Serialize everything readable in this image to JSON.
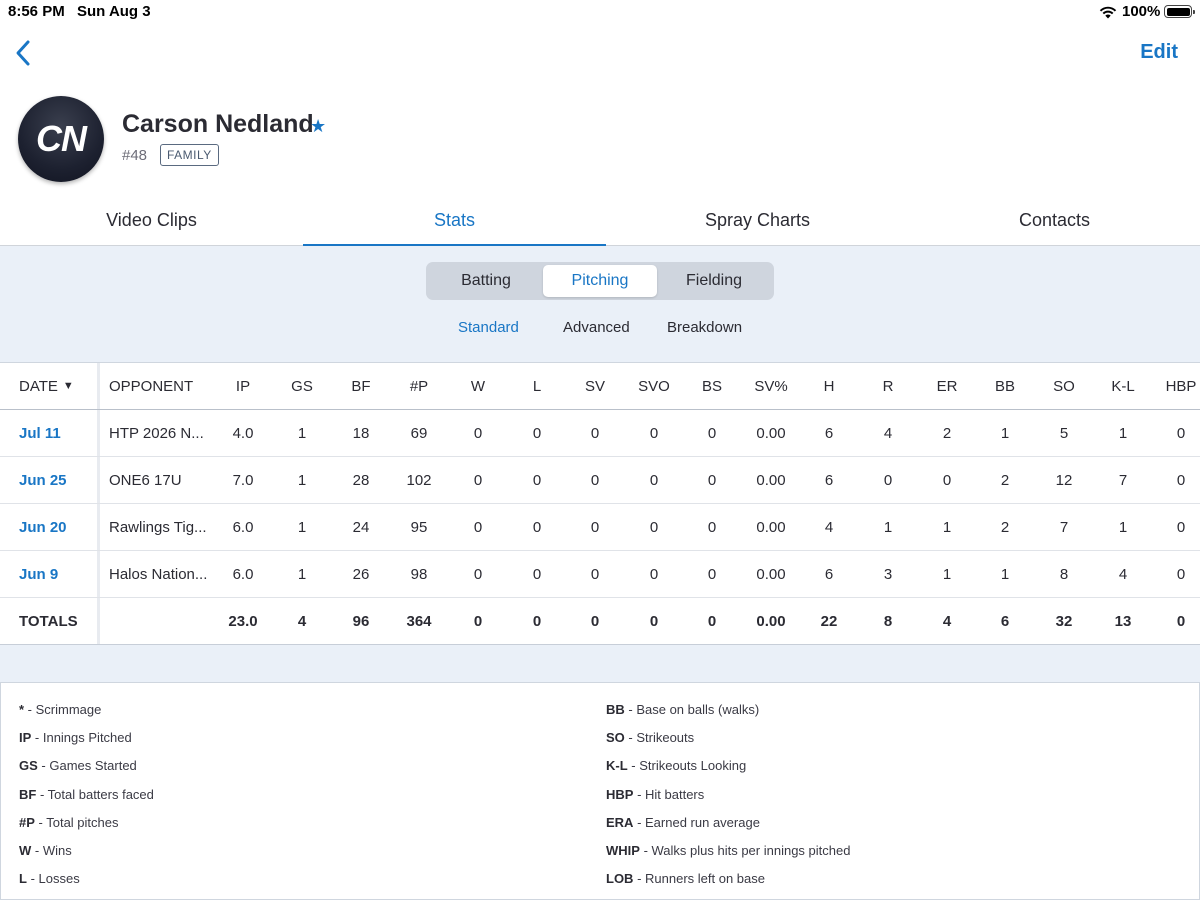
{
  "status_bar": {
    "time": "8:56 PM",
    "date": "Sun Aug 3",
    "battery": "100%"
  },
  "nav": {
    "edit_label": "Edit"
  },
  "player": {
    "initials": "CN",
    "name": "Carson Nedland",
    "number": "#48",
    "badge": "FAMILY"
  },
  "tabs": [
    "Video Clips",
    "Stats",
    "Spray Charts",
    "Contacts"
  ],
  "segments": [
    "Batting",
    "Pitching",
    "Fielding"
  ],
  "subtabs": [
    "Standard",
    "Advanced",
    "Breakdown"
  ],
  "table": {
    "date_header": "DATE",
    "opponent_header": "OPPONENT",
    "stat_headers": [
      "IP",
      "GS",
      "BF",
      "#P",
      "W",
      "L",
      "SV",
      "SVO",
      "BS",
      "SV%",
      "H",
      "R",
      "ER",
      "BB",
      "SO",
      "K-L",
      "HBP"
    ],
    "rows": [
      {
        "date": "Jul 11",
        "opponent": "HTP 2026 N...",
        "stats": [
          "4.0",
          "1",
          "18",
          "69",
          "0",
          "0",
          "0",
          "0",
          "0",
          "0.00",
          "6",
          "4",
          "2",
          "1",
          "5",
          "1",
          "0"
        ]
      },
      {
        "date": "Jun 25",
        "opponent": "ONE6 17U",
        "stats": [
          "7.0",
          "1",
          "28",
          "102",
          "0",
          "0",
          "0",
          "0",
          "0",
          "0.00",
          "6",
          "0",
          "0",
          "2",
          "12",
          "7",
          "0"
        ]
      },
      {
        "date": "Jun 20",
        "opponent": "Rawlings Tig...",
        "stats": [
          "6.0",
          "1",
          "24",
          "95",
          "0",
          "0",
          "0",
          "0",
          "0",
          "0.00",
          "4",
          "1",
          "1",
          "2",
          "7",
          "1",
          "0"
        ]
      },
      {
        "date": "Jun 9",
        "opponent": "Halos Nation...",
        "stats": [
          "6.0",
          "1",
          "26",
          "98",
          "0",
          "0",
          "0",
          "0",
          "0",
          "0.00",
          "6",
          "3",
          "1",
          "1",
          "8",
          "4",
          "0"
        ]
      }
    ],
    "totals": {
      "label": "TOTALS",
      "stats": [
        "23.0",
        "4",
        "96",
        "364",
        "0",
        "0",
        "0",
        "0",
        "0",
        "0.00",
        "22",
        "8",
        "4",
        "6",
        "32",
        "13",
        "0"
      ]
    }
  },
  "legend": {
    "left": [
      {
        "abbr": "*",
        "desc": " - Scrimmage"
      },
      {
        "abbr": "IP",
        "desc": " - Innings Pitched"
      },
      {
        "abbr": "GS",
        "desc": " - Games Started"
      },
      {
        "abbr": "BF",
        "desc": " - Total batters faced"
      },
      {
        "abbr": "#P",
        "desc": " - Total pitches"
      },
      {
        "abbr": "W",
        "desc": " - Wins"
      },
      {
        "abbr": "L",
        "desc": " - Losses"
      }
    ],
    "right": [
      {
        "abbr": "BB",
        "desc": " - Base on balls (walks)"
      },
      {
        "abbr": "SO",
        "desc": " - Strikeouts"
      },
      {
        "abbr": "K-L",
        "desc": " - Strikeouts Looking"
      },
      {
        "abbr": "HBP",
        "desc": " - Hit batters"
      },
      {
        "abbr": "ERA",
        "desc": " - Earned run average"
      },
      {
        "abbr": "WHIP",
        "desc": " - Walks plus hits per innings pitched"
      },
      {
        "abbr": "LOB",
        "desc": " - Runners left on base"
      }
    ]
  },
  "colors": {
    "accent": "#1976c5",
    "panel_bg": "#eaf0f8"
  }
}
